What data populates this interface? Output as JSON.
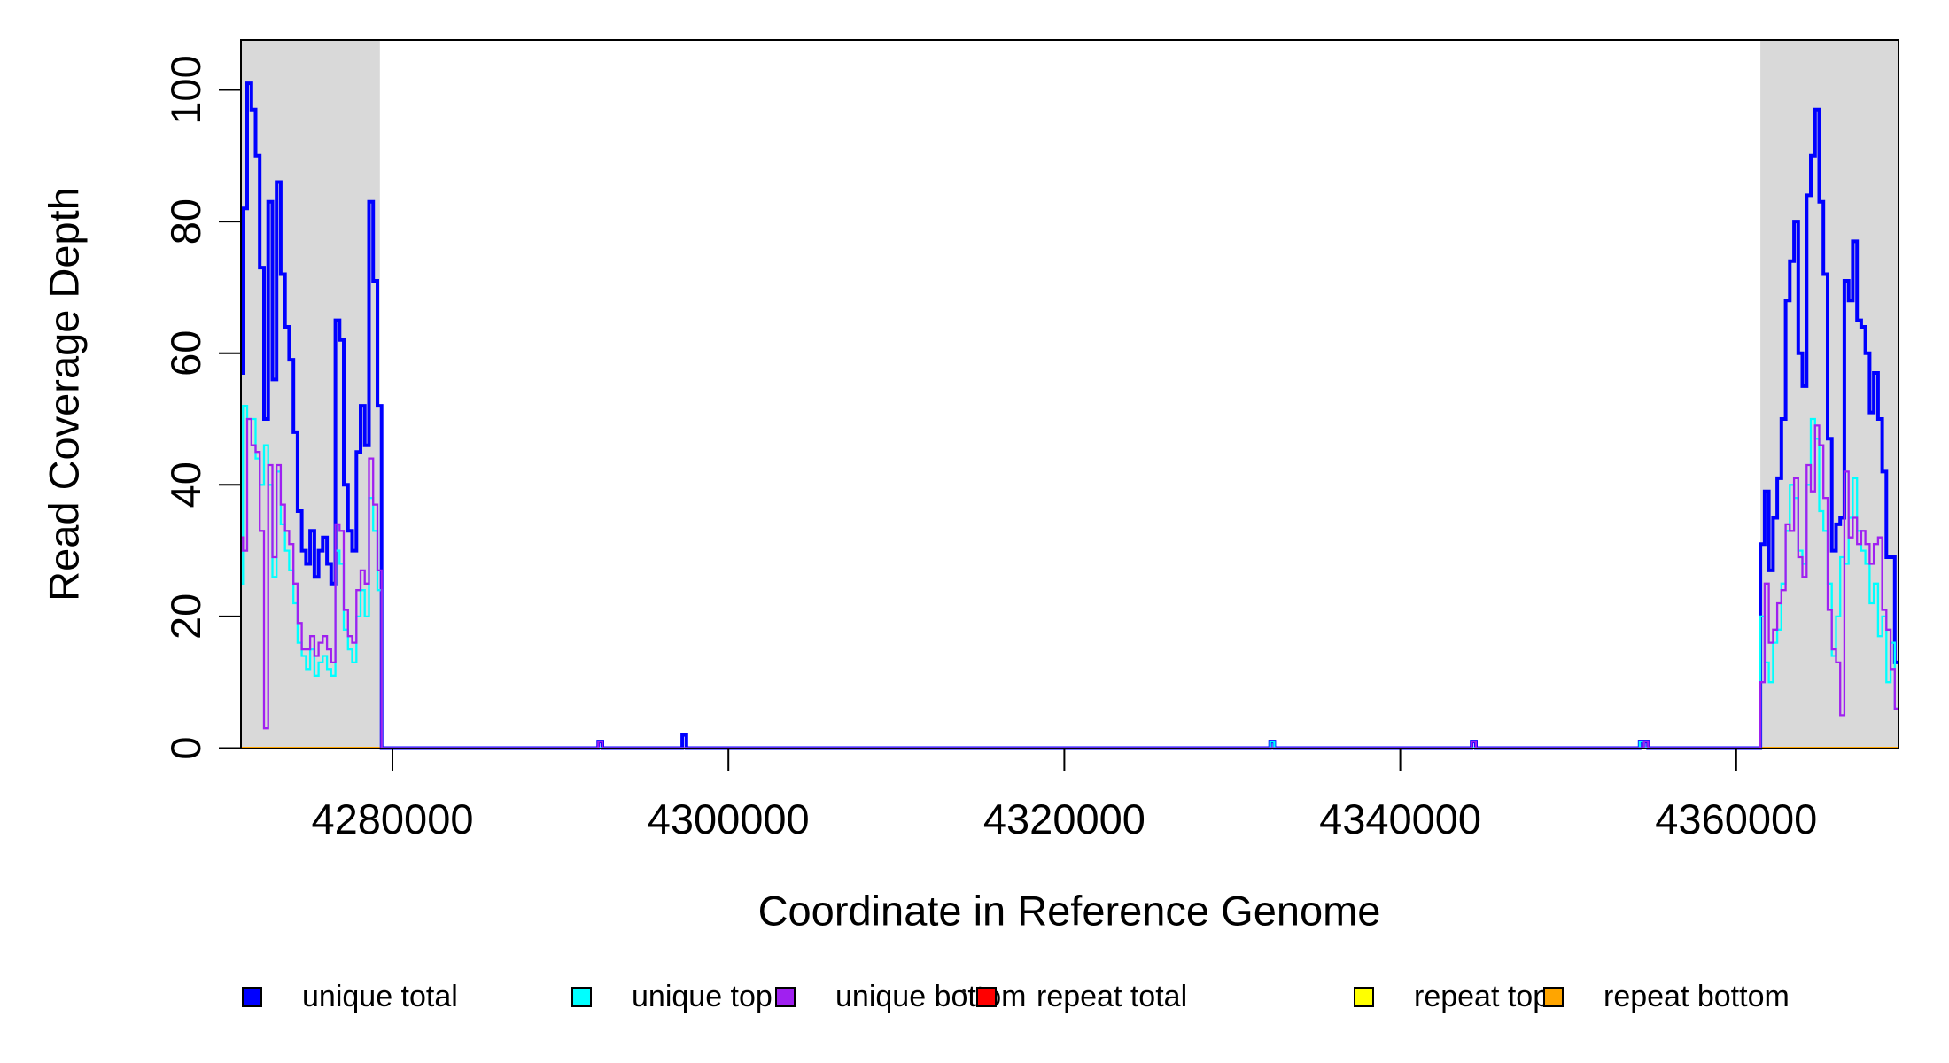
{
  "chart_data": {
    "type": "line",
    "subtype": "step-coverage-plot",
    "title": "",
    "xlabel": "Coordinate in Reference Genome",
    "ylabel": "Read Coverage Depth",
    "xlim": [
      4270980,
      4369660
    ],
    "ylim": [
      0,
      100
    ],
    "xticks": [
      4280000,
      4300000,
      4320000,
      4340000,
      4360000
    ],
    "yticks": [
      0,
      20,
      40,
      60,
      80,
      100
    ],
    "bin_size": 250,
    "grid": "off",
    "legend_position": "bottom-horizontal",
    "shaded_regions": [
      {
        "name": "left-repeat-region",
        "x_start": 4270980,
        "x_end": 4279250,
        "color": "#D9D9D9"
      },
      {
        "name": "right-repeat-region",
        "x_start": 4361440,
        "x_end": 4369660,
        "color": "#D9D9D9"
      }
    ],
    "series": [
      {
        "name": "unique total",
        "color": "#0000FF",
        "width": 4,
        "segments": [
          {
            "x_start": 4270850,
            "values": [
              57,
              82,
              101,
              97,
              90,
              73,
              50,
              83,
              56,
              86,
              72,
              64,
              59,
              48,
              36,
              30,
              28,
              33,
              26,
              30,
              32,
              28,
              25,
              65,
              62,
              40,
              33,
              30,
              45,
              52,
              46,
              83,
              71,
              52
            ]
          },
          {
            "x_start": 4361440,
            "values": [
              31,
              39,
              27,
              35,
              41,
              50,
              68,
              74,
              80,
              60,
              55,
              84,
              90,
              97,
              83,
              72,
              47,
              30,
              34,
              35,
              71,
              68,
              77,
              65,
              64,
              60,
              51,
              57,
              50,
              42,
              29,
              29,
              13
            ]
          }
        ],
        "blips": [
          [
            4292250,
            1
          ],
          [
            4297250,
            2
          ],
          [
            4332250,
            1
          ],
          [
            4344250,
            1
          ],
          [
            4354250,
            1
          ],
          [
            4354500,
            1
          ]
        ]
      },
      {
        "name": "unique top",
        "color": "#00FFFF",
        "width": 2.3,
        "segments": [
          {
            "x_start": 4270850,
            "values": [
              25,
              52,
              50,
              50,
              44,
              40,
              46,
              40,
              26,
              42,
              34,
              30,
              27,
              22,
              16,
              14,
              12,
              15,
              11,
              13,
              14,
              12,
              11,
              30,
              28,
              18,
              15,
              13,
              20,
              24,
              20,
              38,
              33,
              24
            ]
          },
          {
            "x_start": 4361440,
            "values": [
              20,
              13,
              10,
              16,
              18,
              25,
              33,
              40,
              38,
              30,
              28,
              40,
              50,
              47,
              36,
              33,
              25,
              14,
              20,
              29,
              28,
              35,
              41,
              33,
              30,
              28,
              22,
              25,
              17,
              20,
              10,
              16,
              6
            ]
          }
        ],
        "blips": [
          [
            4332250,
            1
          ],
          [
            4354250,
            1
          ]
        ]
      },
      {
        "name": "unique bottom",
        "color": "#A020F0",
        "width": 2.3,
        "segments": [
          {
            "x_start": 4270850,
            "values": [
              32,
              30,
              50,
              46,
              45,
              33,
              3,
              43,
              29,
              43,
              37,
              33,
              31,
              25,
              19,
              15,
              15,
              17,
              14,
              16,
              17,
              15,
              13,
              34,
              33,
              21,
              17,
              16,
              24,
              27,
              25,
              44,
              37,
              27
            ]
          },
          {
            "x_start": 4361440,
            "values": [
              10,
              25,
              16,
              18,
              22,
              24,
              34,
              33,
              41,
              29,
              26,
              43,
              39,
              49,
              46,
              38,
              21,
              15,
              13,
              5,
              42,
              32,
              35,
              31,
              33,
              31,
              28,
              31,
              32,
              21,
              18,
              12,
              6
            ]
          }
        ],
        "blips": [
          [
            4292250,
            1
          ],
          [
            4344250,
            1
          ],
          [
            4354500,
            1
          ]
        ]
      },
      {
        "name": "repeat total",
        "color": "#FF0000",
        "width": 2.3,
        "flat_value": 0,
        "flat_segments": [
          [
            4270980,
            4279250
          ],
          [
            4361440,
            4369660
          ]
        ]
      },
      {
        "name": "repeat top",
        "color": "#FFFF00",
        "width": 2.3,
        "flat_value": 0,
        "flat_segments": [
          [
            4270980,
            4279250
          ],
          [
            4361440,
            4369660
          ]
        ]
      },
      {
        "name": "repeat bottom",
        "color": "#FFA500",
        "width": 3,
        "flat_value": 0,
        "flat_segments": [
          [
            4270980,
            4279250
          ],
          [
            4361440,
            4369660
          ]
        ]
      }
    ]
  },
  "legend": {
    "items": [
      {
        "label": "unique total",
        "color": "#0000FF"
      },
      {
        "label": "unique top",
        "color": "#00FFFF"
      },
      {
        "label": "unique bottom",
        "color": "#A020F0"
      },
      {
        "label": "repeat total",
        "color": "#FF0000"
      },
      {
        "label": "repeat top",
        "color": "#FFFF00"
      },
      {
        "label": "repeat bottom",
        "color": "#FFA500"
      }
    ]
  }
}
